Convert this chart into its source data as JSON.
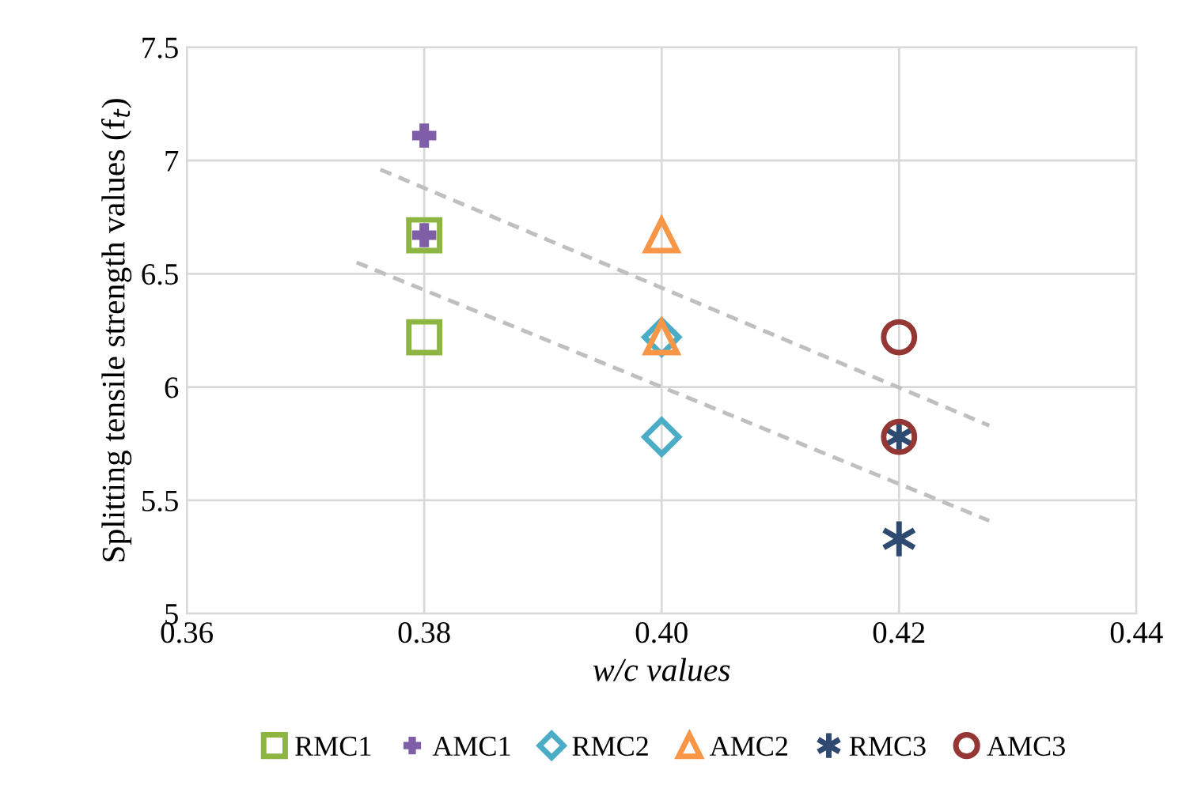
{
  "chart_data": {
    "type": "scatter",
    "xlabel": "w/c values",
    "ylabel": "Splitting tensile strength values (f$_{t}$)",
    "xlim": [
      0.36,
      0.44
    ],
    "xticks": [
      {
        "value": 0.36,
        "label": "0.36"
      },
      {
        "value": 0.38,
        "label": "0.38"
      },
      {
        "value": 0.4,
        "label": "0.40"
      },
      {
        "value": 0.42,
        "label": "0.42"
      },
      {
        "value": 0.44,
        "label": "0.44"
      }
    ],
    "ylim": [
      5,
      7.5
    ],
    "yticks": [
      5,
      5.5,
      6,
      6.5,
      7,
      7.5
    ],
    "grid": true,
    "legend": "bottom",
    "series": [
      {
        "name": "RMC1",
        "color": "#8db542",
        "marker": "square",
        "x": [
          0.38,
          0.38
        ],
        "values": [
          6.67,
          6.22
        ]
      },
      {
        "name": "AMC1",
        "color": "#7f5ea8",
        "marker": "cross",
        "x": [
          0.38,
          0.38
        ],
        "values": [
          7.11,
          6.67
        ]
      },
      {
        "name": "RMC2",
        "color": "#4bacc6",
        "marker": "diamond",
        "x": [
          0.4,
          0.4
        ],
        "values": [
          6.22,
          5.78
        ]
      },
      {
        "name": "AMC2",
        "color": "#f79646",
        "marker": "triangle",
        "x": [
          0.4,
          0.4
        ],
        "values": [
          6.67,
          6.22
        ]
      },
      {
        "name": "RMC3",
        "color": "#2f4a70",
        "marker": "cross",
        "x": [
          0.42,
          0.42
        ],
        "values": [
          5.78,
          5.33
        ]
      },
      {
        "name": "AMC3",
        "color": "#943634",
        "marker": "circle",
        "x": [
          0.42,
          0.42
        ],
        "values": [
          6.22,
          5.78
        ]
      },
      {
        "type": "line",
        "color": "#bfbfbf",
        "line_style": "dashed",
        "marker": "none",
        "x": [
          0.3763,
          0.4276
        ],
        "values": [
          6.96,
          5.83
        ]
      },
      {
        "type": "line",
        "color": "#bfbfbf",
        "line_style": "dashed",
        "marker": "none",
        "x": [
          0.3743,
          0.4276
        ],
        "values": [
          6.55,
          5.41
        ]
      }
    ]
  }
}
